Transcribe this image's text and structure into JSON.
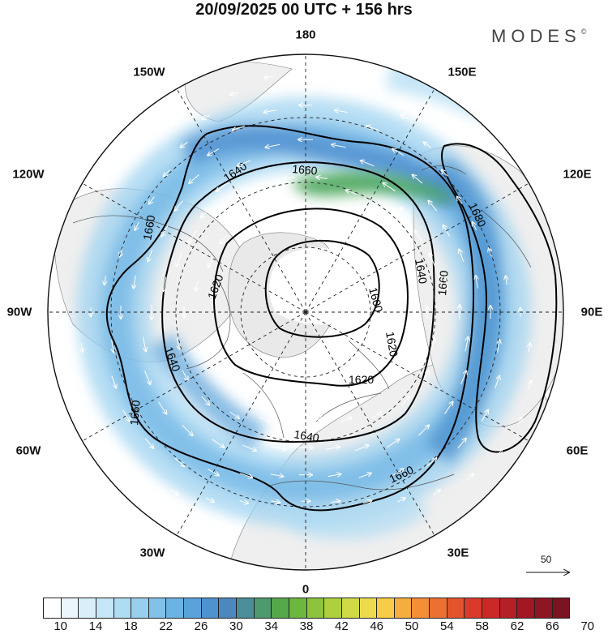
{
  "title": "20/09/2025  00 UTC  + 156 hrs",
  "brand": {
    "name": "MODES",
    "mark": "©"
  },
  "lon_labels": {
    "n180": "180",
    "w150": "150W",
    "e150": "150E",
    "w120": "120W",
    "e120": "120E",
    "w90": "90W",
    "e90": "90E",
    "w60": "60W",
    "e60": "60E",
    "w30": "30W",
    "e30": "30E",
    "s0": "0"
  },
  "contours": [
    {
      "label": "1600",
      "value": 1600
    },
    {
      "label": "1620",
      "value": 1620
    },
    {
      "label": "1640",
      "value": 1640
    },
    {
      "label": "1660",
      "value": 1660
    },
    {
      "label": "1680",
      "value": 1680
    }
  ],
  "wind_reference": {
    "label": "50"
  },
  "colorbar": {
    "colors": [
      "#ffffff",
      "#eaf6fb",
      "#d8eff9",
      "#c4e6f6",
      "#aedcf3",
      "#97d0ef",
      "#82c2ea",
      "#6bb3e3",
      "#5aa2da",
      "#4e93cf",
      "#4a88bd",
      "#4a8e9a",
      "#4c9a6e",
      "#55a84a",
      "#6cb83f",
      "#8cc43e",
      "#aed03f",
      "#cfda44",
      "#ecdc4c",
      "#f8cc48",
      "#f6ad3f",
      "#f28f37",
      "#ec7031",
      "#e4532c",
      "#d93a29",
      "#c92a28",
      "#b51f26",
      "#a11824",
      "#8e1522",
      "#7b1220"
    ],
    "tick_labels": [
      "10",
      "14",
      "18",
      "22",
      "26",
      "30",
      "34",
      "38",
      "42",
      "46",
      "50",
      "54",
      "58",
      "62",
      "66",
      "70"
    ]
  }
}
